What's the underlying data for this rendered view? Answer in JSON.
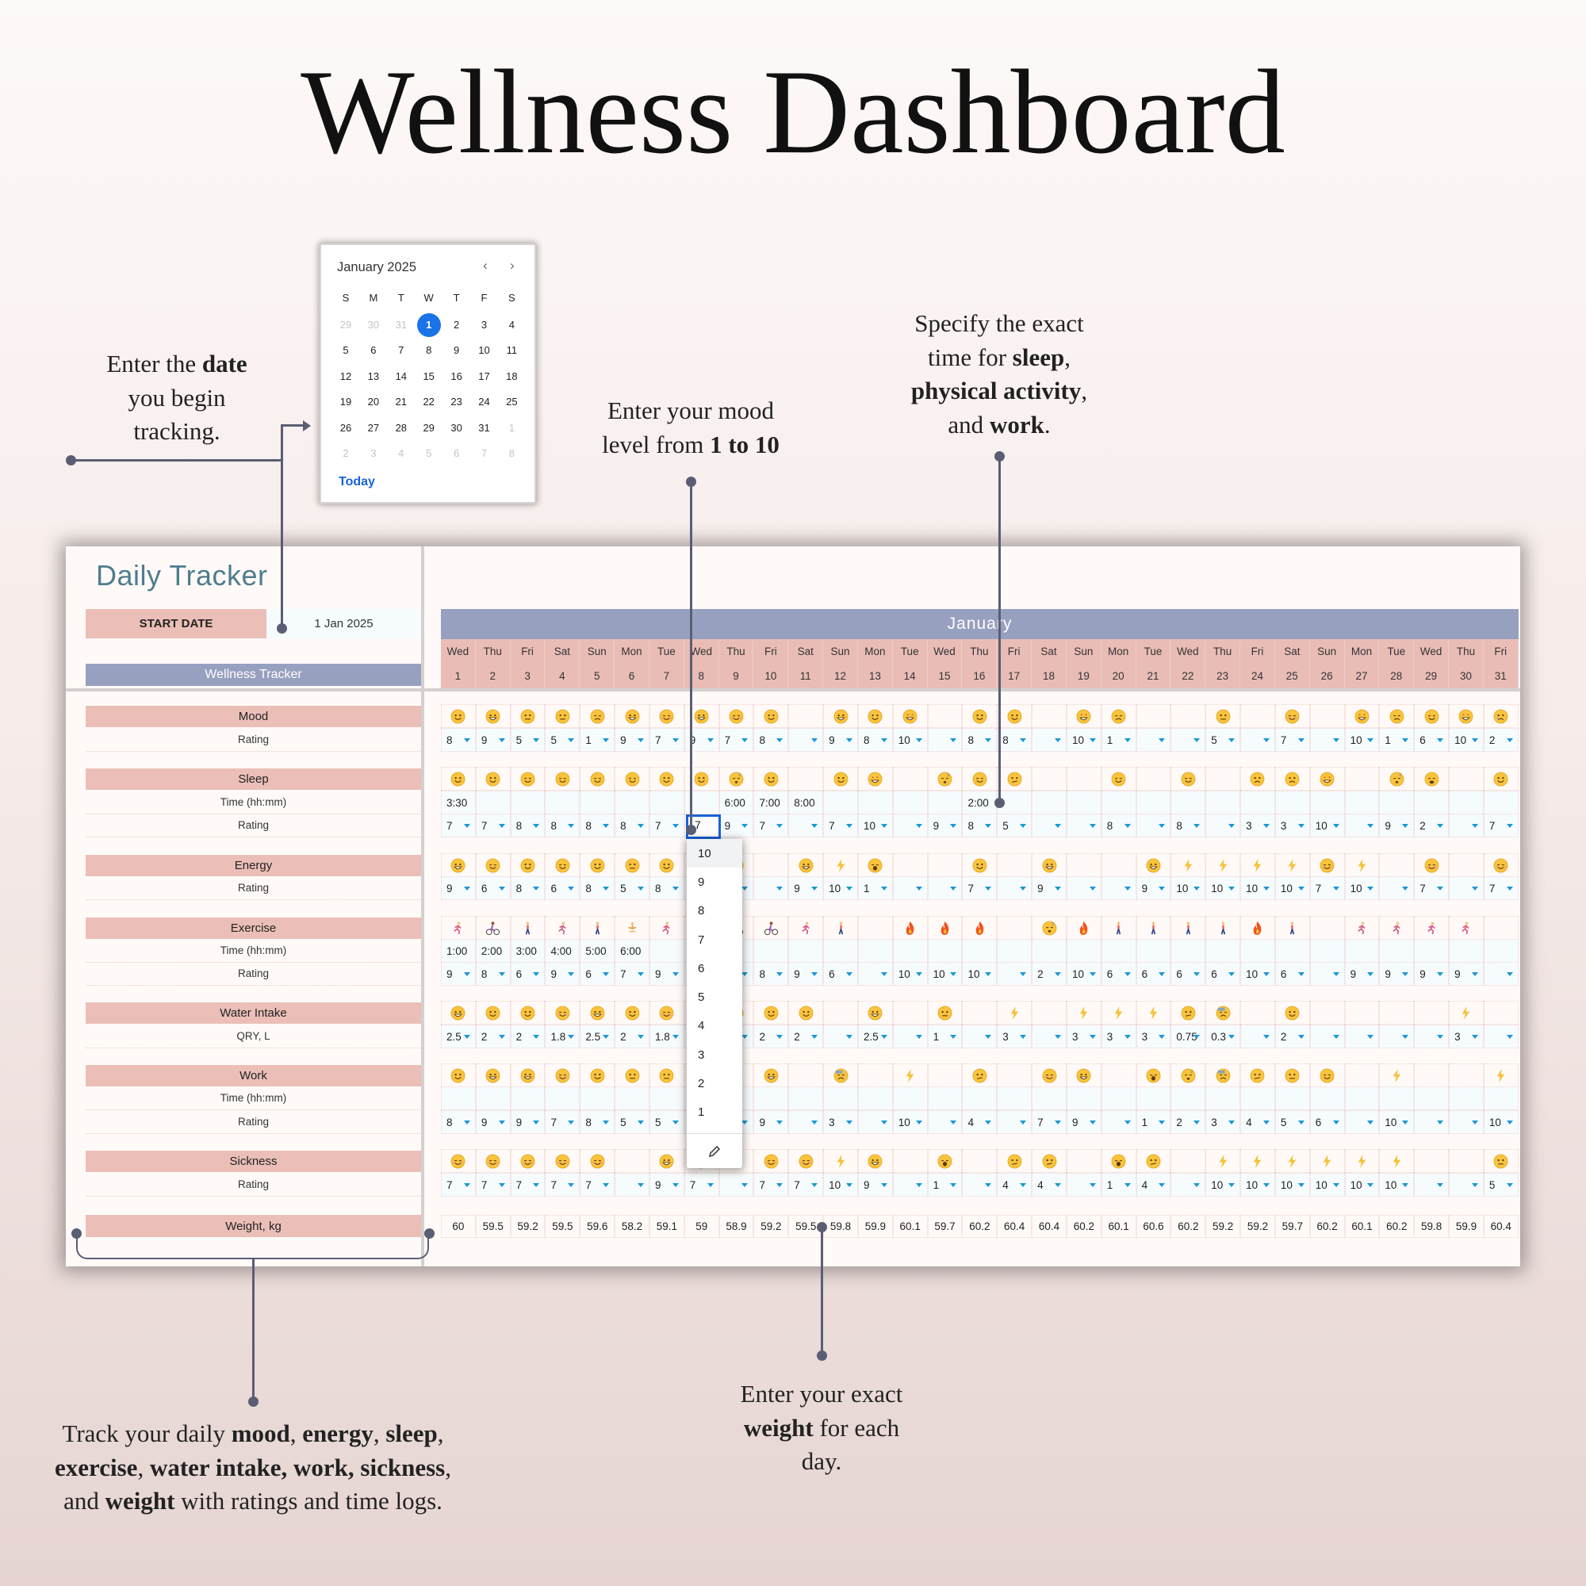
{
  "page_title": "Wellness Dashboard",
  "annotations": {
    "date": [
      "Enter the <b>date</b>",
      "you begin",
      "tracking."
    ],
    "mood": [
      "Enter your mood",
      "level from <b>1 to 10</b>"
    ],
    "time": [
      "Specify the exact",
      "time for <b>sleep</b>,",
      "<b>physical activity</b>,",
      "and <b>work</b>."
    ],
    "track": [
      "Track your daily <b>mood</b>, <b>energy</b>, <b>sleep</b>,",
      "<b>exercise</b>, <b>water intake, work, sickness</b>,",
      "and <b>weight</b> with ratings and time logs."
    ],
    "weight": [
      "Enter your exact",
      "<b>weight</b> for each",
      "day."
    ]
  },
  "calendar": {
    "title": "January 2025",
    "prev_icon": "chevron-left-icon",
    "next_icon": "chevron-right-icon",
    "weekdays": [
      "S",
      "M",
      "T",
      "W",
      "T",
      "F",
      "S"
    ],
    "weeks": [
      [
        "29",
        "30",
        "31",
        "1",
        "2",
        "3",
        "4"
      ],
      [
        "5",
        "6",
        "7",
        "8",
        "9",
        "10",
        "11"
      ],
      [
        "12",
        "13",
        "14",
        "15",
        "16",
        "17",
        "18"
      ],
      [
        "19",
        "20",
        "21",
        "22",
        "23",
        "24",
        "25"
      ],
      [
        "26",
        "27",
        "28",
        "29",
        "30",
        "31",
        "1"
      ],
      [
        "2",
        "3",
        "4",
        "5",
        "6",
        "7",
        "8"
      ]
    ],
    "selected": "1",
    "today_label": "Today"
  },
  "sheet": {
    "title": "Daily Tracker",
    "start_date_label": "START DATE",
    "start_date_value": "1 Jan 2025",
    "section_bar": "Wellness Tracker",
    "month": "January",
    "day_names": [
      "Wed",
      "Thu",
      "Fri",
      "Sat",
      "Sun",
      "Mon",
      "Tue",
      "Wed",
      "Thu",
      "Fri",
      "Sat",
      "Sun",
      "Mon",
      "Tue",
      "Wed",
      "Thu",
      "Fri",
      "Sat",
      "Sun",
      "Mon",
      "Tue",
      "Wed",
      "Thu",
      "Fri",
      "Sat",
      "Sun",
      "Mon",
      "Tue",
      "Wed",
      "Thu",
      "Fri"
    ],
    "day_numbers": [
      "1",
      "2",
      "3",
      "4",
      "5",
      "6",
      "7",
      "8",
      "9",
      "10",
      "11",
      "12",
      "13",
      "14",
      "15",
      "16",
      "17",
      "18",
      "19",
      "20",
      "21",
      "22",
      "23",
      "24",
      "25",
      "26",
      "27",
      "28",
      "29",
      "30",
      "31"
    ],
    "icon_names": {
      "sm": "slightly-smiling-face-icon",
      "gr": "grinning-face-icon",
      "ne": "neutral-face-icon",
      "di": "disappointed-face-icon",
      "bl": "smiling-face-icon",
      "st": "star-struck-face-icon",
      "re": "relieved-face-icon",
      "sl": "sleeping-face-icon",
      "cr": "crying-face-icon",
      "co": "confused-face-icon",
      "wo": "worried-face-icon",
      "we": "weary-face-icon",
      "ya": "yawning-face-icon",
      "sw": "downcast-sweat-face-icon",
      "bolt": "lightning-icon",
      "fire": "fire-icon",
      "run": "running-icon",
      "bike": "cycling-icon",
      "walk": "walking-icon",
      "yoga": "yoga-icon"
    },
    "sections": [
      {
        "label": "Mood",
        "icons": [
          "sm",
          "gr",
          "ne",
          "ne",
          "di",
          "gr",
          "bl",
          "gr",
          "bl",
          "sm",
          "",
          "gr",
          "sm",
          "st",
          "",
          "sm",
          "sm",
          "",
          "st",
          "di",
          "",
          "",
          "ne",
          "",
          "bl",
          "",
          "st",
          "di",
          "re",
          "st",
          "cr"
        ],
        "rows": [
          {
            "label": "Rating",
            "kind": "rating",
            "values": [
              "8",
              "9",
              "5",
              "5",
              "1",
              "9",
              "7",
              "9",
              "7",
              "8",
              "",
              "9",
              "8",
              "10",
              "",
              "8",
              "8",
              "",
              "10",
              "1",
              "",
              "",
              "5",
              "",
              "7",
              "",
              "10",
              "1",
              "6",
              "10",
              "2"
            ]
          }
        ]
      },
      {
        "label": "Sleep",
        "icons": [
          "sm",
          "sm",
          "re",
          "re",
          "re",
          "re",
          "sm",
          "sm",
          "sl",
          "sm",
          "",
          "sm",
          "st",
          "",
          "sl",
          "re",
          "co",
          "",
          "",
          "re",
          "",
          "re",
          "",
          "wo",
          "wo",
          "st",
          "",
          "sl",
          "we",
          "",
          "sm"
        ],
        "rows": [
          {
            "label": "Time (hh:mm)",
            "kind": "time",
            "values": [
              "3:30",
              "",
              "",
              "",
              "",
              "",
              "",
              "",
              "6:00",
              "7:00",
              "8:00",
              "",
              "",
              "",
              "",
              "2:00",
              "",
              "",
              "",
              "",
              "",
              "",
              "",
              "",
              "",
              "",
              "",
              "",
              "",
              "",
              ""
            ]
          },
          {
            "label": "Rating",
            "kind": "rating",
            "values": [
              "7",
              "7",
              "8",
              "8",
              "8",
              "8",
              "7",
              "7",
              "9",
              "7",
              "",
              "7",
              "10",
              "",
              "9",
              "8",
              "5",
              "",
              "",
              "8",
              "",
              "8",
              "",
              "3",
              "3",
              "10",
              "",
              "9",
              "2",
              "",
              "7"
            ]
          }
        ]
      },
      {
        "label": "Energy",
        "icons": [
          "gr",
          "re",
          "sm",
          "re",
          "sm",
          "ne",
          "sm",
          "",
          "sm",
          "",
          "gr",
          "bolt",
          "ya",
          "",
          "",
          "sm",
          "",
          "gr",
          "",
          "",
          "gr",
          "bolt",
          "bolt",
          "bolt",
          "bolt",
          "bl",
          "bolt",
          "",
          "bl",
          "",
          "bl"
        ],
        "rows": [
          {
            "label": "Rating",
            "kind": "rating",
            "values": [
              "9",
              "6",
              "8",
              "6",
              "8",
              "5",
              "8",
              "",
              "",
              "",
              "9",
              "10",
              "1",
              "",
              "",
              "7",
              "",
              "9",
              "",
              "",
              "9",
              "10",
              "10",
              "10",
              "10",
              "7",
              "10",
              "",
              "7",
              "",
              "7"
            ]
          }
        ]
      },
      {
        "label": "Exercise",
        "icons": [
          "run",
          "bike",
          "walk",
          "run",
          "walk",
          "yoga",
          "run",
          "",
          "bike",
          "bike",
          "run",
          "walk",
          "",
          "fire",
          "fire",
          "fire",
          "",
          "sl",
          "fire",
          "walk",
          "walk",
          "walk",
          "walk",
          "fire",
          "walk",
          "",
          "run",
          "run",
          "run",
          "run",
          ""
        ],
        "rows": [
          {
            "label": "Time (hh:mm)",
            "kind": "time",
            "values": [
              "1:00",
              "2:00",
              "3:00",
              "4:00",
              "5:00",
              "6:00",
              "",
              "",
              "",
              "",
              "",
              "",
              "",
              "",
              "",
              "",
              "",
              "",
              "",
              "",
              "",
              "",
              "",
              "",
              "",
              "",
              "",
              "",
              "",
              "",
              ""
            ]
          },
          {
            "label": "Rating",
            "kind": "rating",
            "values": [
              "9",
              "8",
              "6",
              "9",
              "6",
              "7",
              "9",
              "",
              "",
              "8",
              "9",
              "6",
              "",
              "10",
              "10",
              "10",
              "",
              "2",
              "10",
              "6",
              "6",
              "6",
              "6",
              "10",
              "6",
              "",
              "9",
              "9",
              "9",
              "9",
              ""
            ]
          }
        ]
      },
      {
        "label": "Water Intake",
        "icons": [
          "gr",
          "sm",
          "sm",
          "bl",
          "gr",
          "sm",
          "bl",
          "",
          "sm",
          "sm",
          "sm",
          "",
          "gr",
          "",
          "ne",
          "",
          "bolt",
          "",
          "bolt",
          "bolt",
          "bolt",
          "co",
          "sw",
          "",
          "sm",
          "",
          "",
          "",
          "",
          "bolt",
          ""
        ],
        "rows": [
          {
            "label": "QRY, L",
            "kind": "rating",
            "values": [
              "2.5",
              "2",
              "2",
              "1.8",
              "2.5",
              "2",
              "1.8",
              "",
              "",
              "2",
              "2",
              "",
              "2.5",
              "",
              "1",
              "",
              "3",
              "",
              "3",
              "3",
              "3",
              "0.75",
              "0.3",
              "",
              "2",
              "",
              "",
              "",
              "",
              "3",
              ""
            ]
          }
        ]
      },
      {
        "label": "Work",
        "icons": [
          "sm",
          "gr",
          "gr",
          "bl",
          "sm",
          "ne",
          "ne",
          "",
          "",
          "gr",
          "",
          "sw",
          "",
          "bolt",
          "",
          "co",
          "",
          "bl",
          "gr",
          "",
          "ya",
          "sl",
          "sw",
          "co",
          "ne",
          "re",
          "",
          "bolt",
          "",
          "",
          "bolt"
        ],
        "rows": [
          {
            "label": "Time (hh:mm)",
            "kind": "time",
            "values": [
              "",
              "",
              "",
              "",
              "",
              "",
              "",
              "",
              "",
              "",
              "",
              "",
              "",
              "",
              "",
              "",
              "",
              "",
              "",
              "",
              "",
              "",
              "",
              "",
              "",
              "",
              "",
              "",
              "",
              "",
              ""
            ]
          },
          {
            "label": "Rating",
            "kind": "rating",
            "values": [
              "8",
              "9",
              "9",
              "7",
              "8",
              "5",
              "5",
              "",
              "",
              "9",
              "",
              "3",
              "",
              "10",
              "",
              "4",
              "",
              "7",
              "9",
              "",
              "1",
              "2",
              "3",
              "4",
              "5",
              "6",
              "",
              "10",
              "",
              "",
              "10"
            ]
          }
        ]
      },
      {
        "label": "Sickness",
        "icons": [
          "bl",
          "bl",
          "bl",
          "bl",
          "bl",
          "",
          "gr",
          "bl",
          "",
          "bl",
          "bl",
          "bolt",
          "gr",
          "",
          "ya",
          "",
          "co",
          "co",
          "",
          "ya",
          "co",
          "",
          "bolt",
          "bolt",
          "bolt",
          "bolt",
          "bolt",
          "bolt",
          "",
          "",
          "ne"
        ],
        "rows": [
          {
            "label": "Rating",
            "kind": "rating",
            "values": [
              "7",
              "7",
              "7",
              "7",
              "7",
              "",
              "9",
              "7",
              "",
              "7",
              "7",
              "10",
              "9",
              "",
              "1",
              "",
              "4",
              "4",
              "",
              "1",
              "4",
              "",
              "10",
              "10",
              "10",
              "10",
              "10",
              "10",
              "",
              "",
              "5"
            ]
          }
        ]
      }
    ],
    "weight": {
      "label": "Weight, kg",
      "values": [
        "60",
        "59.5",
        "59.2",
        "59.5",
        "59.6",
        "58.2",
        "59.1",
        "59",
        "58.9",
        "59.2",
        "59.5",
        "59.8",
        "59.9",
        "60.1",
        "59.7",
        "60.2",
        "60.4",
        "60.4",
        "60.2",
        "60.1",
        "60.6",
        "60.2",
        "59.2",
        "59.2",
        "59.7",
        "60.2",
        "60.1",
        "60.2",
        "59.8",
        "59.9",
        "60.4"
      ]
    },
    "active_cell_value": "7",
    "dropdown": {
      "options": [
        "10",
        "9",
        "8",
        "7",
        "6",
        "5",
        "4",
        "3",
        "2",
        "1"
      ],
      "edit_icon": "pencil-icon"
    }
  },
  "colors": {
    "accent_pink": "#ebbfb8",
    "accent_lavender": "#98a0c0",
    "title_teal": "#4e7d8e",
    "caret_blue": "#1b98d3",
    "selection_blue": "#1a73e8",
    "connector": "#5b5d74"
  }
}
